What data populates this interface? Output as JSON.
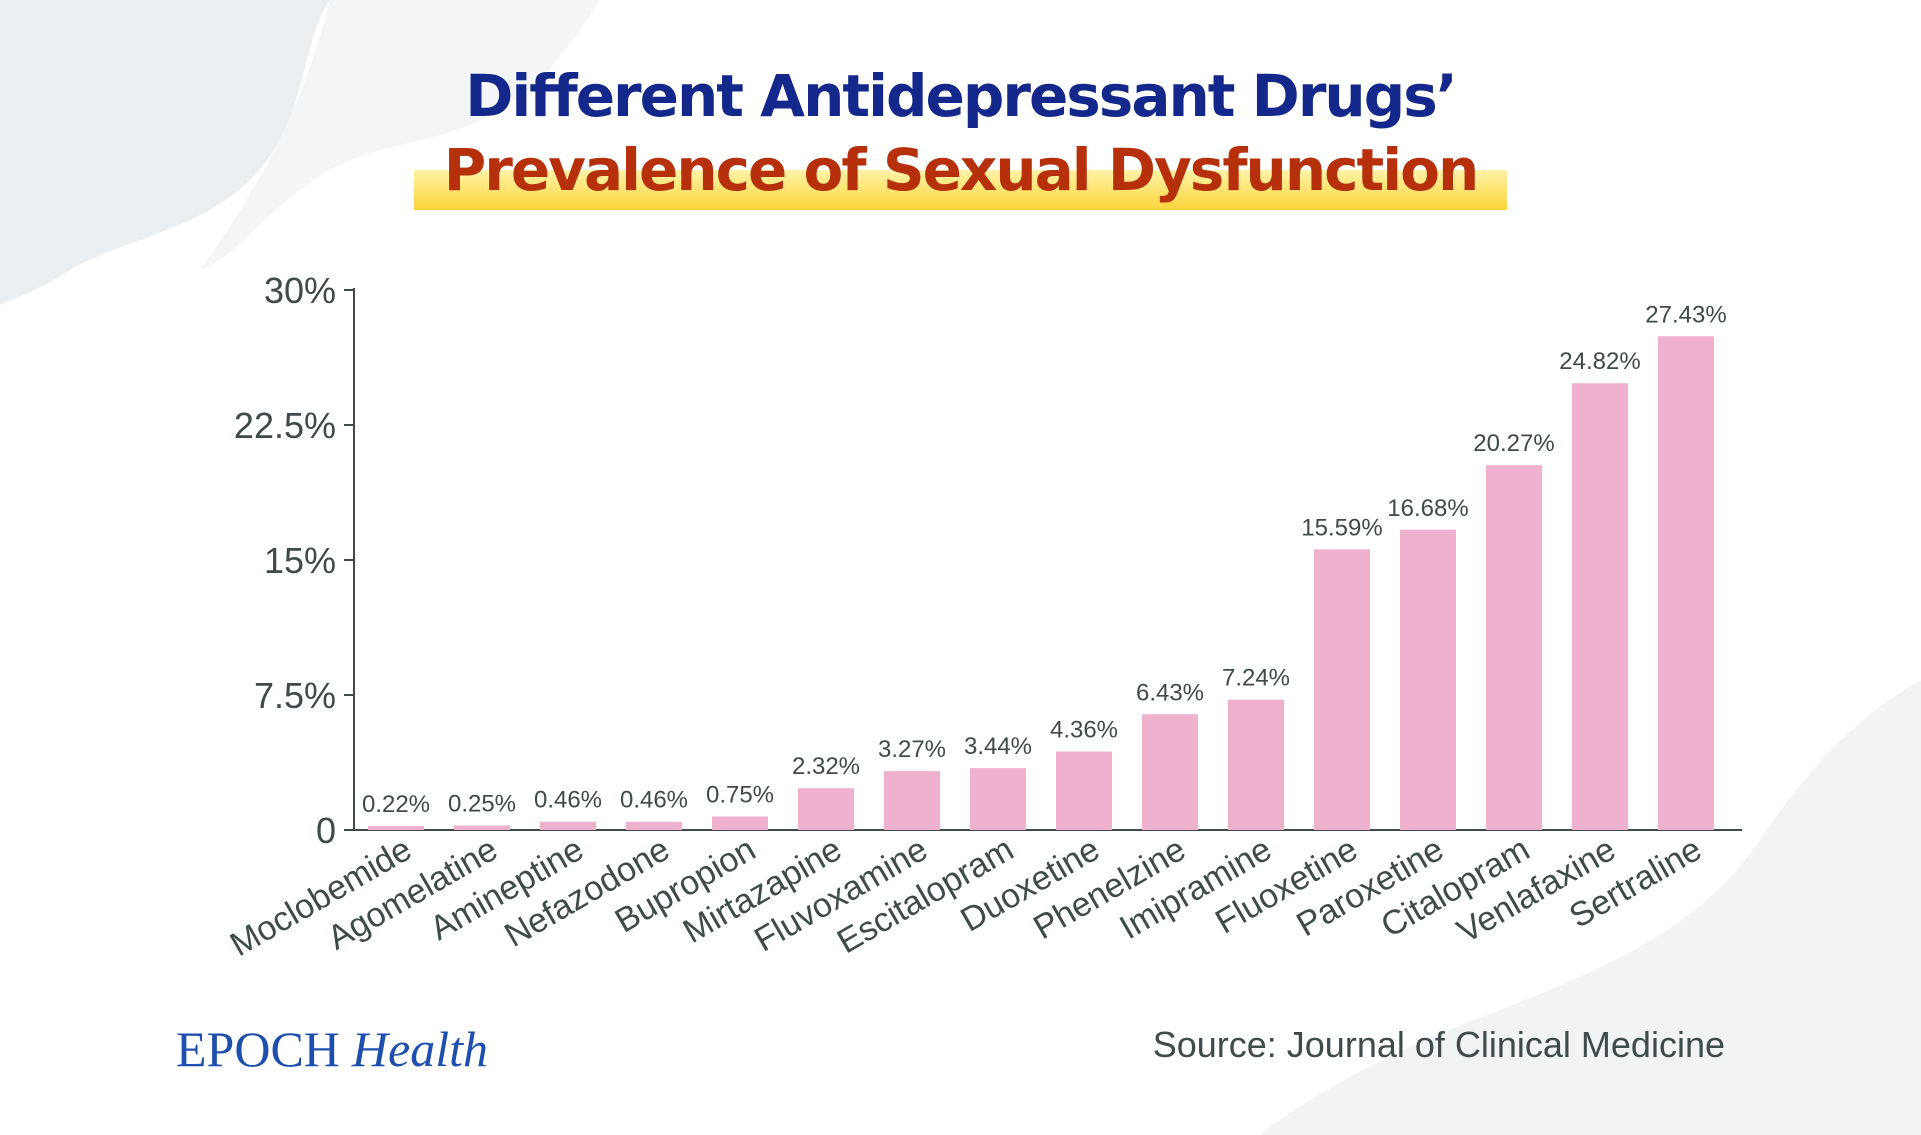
{
  "title": {
    "line1": "Different Antidepressant Drugs’",
    "line2": "Prevalence of Sexual Dysfunction"
  },
  "colors": {
    "title_line1": "#13288a",
    "title_line2": "#b5300b",
    "bar": "#f0b1cf",
    "axis": "#3f4a4a",
    "brand": "#1f4fae"
  },
  "chart_data": {
    "type": "bar",
    "title": "Different Antidepressant Drugs’ Prevalence of Sexual Dysfunction",
    "xlabel": "",
    "ylabel": "",
    "ylim": [
      0,
      30
    ],
    "y_ticks": [
      0,
      7.5,
      15,
      22.5,
      30
    ],
    "y_tick_labels": [
      "0",
      "7.5%",
      "15%",
      "22.5%",
      "30%"
    ],
    "categories": [
      "Moclobemide",
      "Agomelatine",
      "Amineptine",
      "Nefazodone",
      "Bupropion",
      "Mirtazapine",
      "Fluvoxamine",
      "Escitalopram",
      "Duoxetine",
      "Phenelzine",
      "Imipramine",
      "Fluoxetine",
      "Paroxetine",
      "Citalopram",
      "Venlafaxine",
      "Sertraline"
    ],
    "values": [
      0.22,
      0.25,
      0.46,
      0.46,
      0.75,
      2.32,
      3.27,
      3.44,
      4.36,
      6.43,
      7.24,
      15.59,
      16.68,
      20.27,
      24.82,
      27.43
    ],
    "value_labels": [
      "0.22%",
      "0.25%",
      "0.46%",
      "0.46%",
      "0.75%",
      "2.32%",
      "3.27%",
      "3.44%",
      "4.36%",
      "6.43%",
      "7.24%",
      "15.59%",
      "16.68%",
      "20.27%",
      "24.82%",
      "27.43%"
    ],
    "grid": false,
    "legend": "none"
  },
  "footer": {
    "brand_part1": "EPOCH",
    "brand_part2": "Health",
    "source": "Source: Journal of Clinical Medicine"
  }
}
